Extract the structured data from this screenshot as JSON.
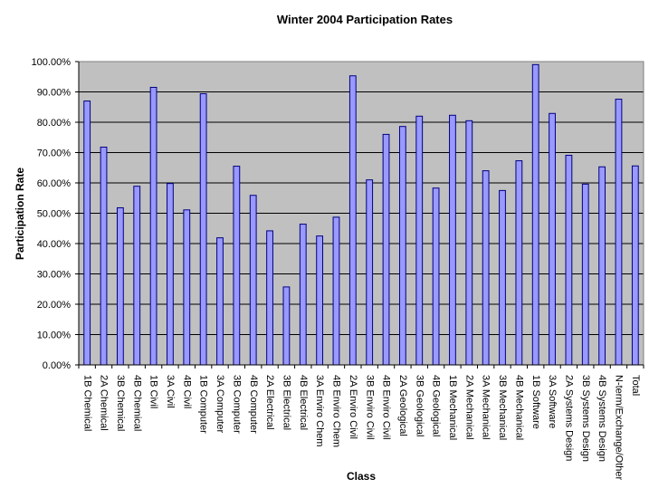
{
  "chart_data": {
    "type": "bar",
    "title": "Winter 2004 Participation Rates",
    "xlabel": "Class",
    "ylabel": "Participation Rate",
    "ylim": [
      0,
      100
    ],
    "ytick_step": 10,
    "ytick_format": "percent_2dp",
    "grid": true,
    "legend": "none",
    "colors": {
      "bar": "#9999ff",
      "bar_stroke": "#000080",
      "plot_bg": "#c0c0c0"
    },
    "categories": [
      "1B Chemical",
      "2A Chemical",
      "3B Chemical",
      "4B Chemical",
      "1B Civil",
      "3A Civil",
      "4B Civil",
      "1B Computer",
      "3A Computer",
      "3B Computer",
      "4B Computer",
      "2A Electrical",
      "3B Electrical",
      "4B Electrical",
      "3A Enviro Chem",
      "4B Enviro Chem",
      "2A Enviro Civil",
      "3B Enviro Civil",
      "4B Enviro Civil",
      "2A Geological",
      "3B Geological",
      "4B Geological",
      "1B Mechanical",
      "2A Mechanical",
      "3A Mechanical",
      "3B Mechanical",
      "4B Mechanical",
      "1B Software",
      "3A Software",
      "2A Systems Design",
      "3B Systems Design",
      "4B Systems Design",
      "N-term/Exchange/Other",
      "Total"
    ],
    "values": [
      87.0,
      71.8,
      51.8,
      58.9,
      91.5,
      59.8,
      51.1,
      89.4,
      41.9,
      65.5,
      55.9,
      44.2,
      25.7,
      46.4,
      42.5,
      48.7,
      95.3,
      61.0,
      76.0,
      78.6,
      82.0,
      58.3,
      82.3,
      80.5,
      64.0,
      57.5,
      67.3,
      99.0,
      82.9,
      69.1,
      59.6,
      65.3,
      87.6,
      65.6
    ]
  }
}
